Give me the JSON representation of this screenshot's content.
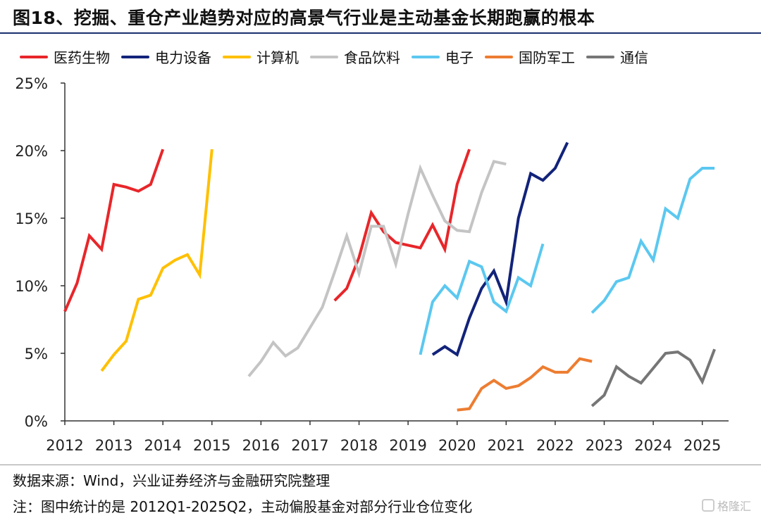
{
  "title": "图18、挖掘、重仓产业趋势对应的高景气行业是主动基金长期跑赢的根本",
  "source": "数据来源：Wind，兴业证券经济与金融研究院整理",
  "note": "注：图中统计的是 2012Q1-2025Q2，主动偏股基金对部分行业仓位变化",
  "watermark": "格隆汇",
  "chart_data": {
    "type": "line",
    "title": "",
    "xlabel": "",
    "ylabel": "",
    "x_ticks": [
      "2012",
      "2013",
      "2014",
      "2015",
      "2016",
      "2017",
      "2018",
      "2019",
      "2020",
      "2021",
      "2022",
      "2023",
      "2024",
      "2025"
    ],
    "y_ticks": [
      "0%",
      "5%",
      "10%",
      "15%",
      "20%",
      "25%"
    ],
    "xlim": [
      2012.0,
      2025.45
    ],
    "ylim": [
      0,
      25
    ],
    "grid": false,
    "legend_position": "top",
    "series": [
      {
        "name": "医药生物",
        "color": "#e8262a",
        "segments": [
          [
            [
              2012.0,
              8.1
            ],
            [
              2012.25,
              10.2
            ],
            [
              2012.5,
              13.7
            ],
            [
              2012.75,
              12.7
            ],
            [
              2013.0,
              17.5
            ],
            [
              2013.25,
              17.3
            ],
            [
              2013.5,
              17.0
            ],
            [
              2013.75,
              17.5
            ],
            [
              2014.0,
              20.1
            ]
          ],
          [
            [
              2017.5,
              8.9
            ],
            [
              2017.75,
              9.8
            ],
            [
              2018.0,
              12.1
            ],
            [
              2018.25,
              15.4
            ],
            [
              2018.5,
              14.0
            ],
            [
              2018.75,
              13.2
            ],
            [
              2019.0,
              13.0
            ],
            [
              2019.25,
              12.8
            ],
            [
              2019.5,
              14.5
            ],
            [
              2019.75,
              12.7
            ],
            [
              2020.0,
              17.5
            ],
            [
              2020.25,
              20.1
            ]
          ]
        ]
      },
      {
        "name": "电力设备",
        "color": "#12237a",
        "segments": [
          [
            [
              2019.5,
              4.9
            ],
            [
              2019.75,
              5.5
            ],
            [
              2020.0,
              4.9
            ],
            [
              2020.25,
              7.6
            ],
            [
              2020.5,
              9.8
            ],
            [
              2020.75,
              11.1
            ],
            [
              2021.0,
              8.8
            ],
            [
              2021.25,
              15.0
            ],
            [
              2021.5,
              18.3
            ],
            [
              2021.75,
              17.8
            ],
            [
              2022.0,
              18.7
            ],
            [
              2022.25,
              20.6
            ]
          ]
        ]
      },
      {
        "name": "计算机",
        "color": "#ffc000",
        "segments": [
          [
            [
              2012.75,
              3.7
            ],
            [
              2013.0,
              4.9
            ],
            [
              2013.25,
              5.9
            ],
            [
              2013.5,
              9.0
            ],
            [
              2013.75,
              9.3
            ],
            [
              2014.0,
              11.3
            ],
            [
              2014.25,
              11.9
            ],
            [
              2014.5,
              12.3
            ],
            [
              2014.75,
              10.8
            ],
            [
              2015.0,
              20.1
            ]
          ]
        ]
      },
      {
        "name": "食品饮料",
        "color": "#c4c4c4",
        "segments": [
          [
            [
              2015.75,
              3.3
            ],
            [
              2016.0,
              4.4
            ],
            [
              2016.25,
              5.8
            ],
            [
              2016.5,
              4.8
            ],
            [
              2016.75,
              5.4
            ],
            [
              2017.0,
              6.9
            ],
            [
              2017.25,
              8.4
            ],
            [
              2017.5,
              11.0
            ],
            [
              2017.75,
              13.7
            ],
            [
              2018.0,
              10.9
            ],
            [
              2018.25,
              14.4
            ],
            [
              2018.5,
              14.4
            ],
            [
              2018.75,
              11.6
            ],
            [
              2019.0,
              15.3
            ],
            [
              2019.25,
              18.7
            ],
            [
              2019.5,
              16.7
            ],
            [
              2019.75,
              14.8
            ],
            [
              2020.0,
              14.1
            ],
            [
              2020.25,
              14.0
            ],
            [
              2020.5,
              16.9
            ],
            [
              2020.75,
              19.2
            ],
            [
              2021.0,
              19.0
            ]
          ]
        ]
      },
      {
        "name": "电子",
        "color": "#5bc8f0",
        "segments": [
          [
            [
              2019.25,
              4.9
            ],
            [
              2019.5,
              8.8
            ],
            [
              2019.75,
              10.0
            ],
            [
              2020.0,
              9.1
            ],
            [
              2020.25,
              11.8
            ],
            [
              2020.5,
              11.4
            ],
            [
              2020.75,
              8.8
            ],
            [
              2021.0,
              8.1
            ],
            [
              2021.25,
              10.6
            ],
            [
              2021.5,
              10.0
            ],
            [
              2021.75,
              13.1
            ]
          ],
          [
            [
              2022.75,
              8.0
            ],
            [
              2023.0,
              8.9
            ],
            [
              2023.25,
              10.3
            ],
            [
              2023.5,
              10.6
            ],
            [
              2023.75,
              13.3
            ],
            [
              2024.0,
              11.9
            ],
            [
              2024.25,
              15.7
            ],
            [
              2024.5,
              15.0
            ],
            [
              2024.75,
              17.9
            ],
            [
              2025.0,
              18.7
            ],
            [
              2025.25,
              18.7
            ]
          ]
        ]
      },
      {
        "name": "国防军工",
        "color": "#ed7d31",
        "segments": [
          [
            [
              2020.0,
              0.8
            ],
            [
              2020.25,
              0.9
            ],
            [
              2020.5,
              2.4
            ],
            [
              2020.75,
              3.0
            ],
            [
              2021.0,
              2.4
            ],
            [
              2021.25,
              2.6
            ],
            [
              2021.5,
              3.2
            ],
            [
              2021.75,
              4.0
            ],
            [
              2022.0,
              3.6
            ],
            [
              2022.25,
              3.6
            ],
            [
              2022.5,
              4.6
            ],
            [
              2022.75,
              4.4
            ]
          ]
        ]
      },
      {
        "name": "通信",
        "color": "#767676",
        "segments": [
          [
            [
              2022.75,
              1.1
            ],
            [
              2023.0,
              1.9
            ],
            [
              2023.25,
              4.0
            ],
            [
              2023.5,
              3.3
            ],
            [
              2023.75,
              2.8
            ],
            [
              2024.0,
              3.9
            ],
            [
              2024.25,
              5.0
            ],
            [
              2024.5,
              5.1
            ],
            [
              2024.75,
              4.5
            ],
            [
              2025.0,
              2.9
            ],
            [
              2025.25,
              5.3
            ]
          ]
        ]
      }
    ]
  }
}
